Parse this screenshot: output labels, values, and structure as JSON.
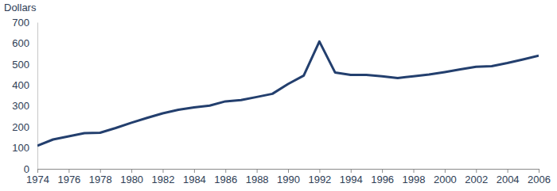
{
  "chart_data": {
    "type": "line",
    "y_label": "Dollars",
    "x": [
      1974,
      1975,
      1976,
      1977,
      1978,
      1979,
      1980,
      1981,
      1982,
      1983,
      1984,
      1985,
      1986,
      1987,
      1988,
      1989,
      1990,
      1991,
      1992,
      1993,
      1994,
      1995,
      1996,
      1997,
      1998,
      1999,
      2000,
      2001,
      2002,
      2003,
      2004,
      2005,
      2006
    ],
    "values": [
      110,
      140,
      155,
      170,
      172,
      195,
      220,
      243,
      265,
      282,
      293,
      302,
      322,
      328,
      343,
      358,
      405,
      445,
      608,
      460,
      448,
      448,
      442,
      433,
      442,
      450,
      462,
      475,
      487,
      490,
      505,
      522,
      540
    ],
    "color": "#233f6e",
    "xlim": [
      1974,
      2006
    ],
    "xticks": [
      1974,
      1976,
      1978,
      1980,
      1982,
      1984,
      1986,
      1988,
      1990,
      1992,
      1994,
      1996,
      1998,
      2000,
      2002,
      2004,
      2006
    ],
    "ylim": [
      0,
      700
    ],
    "yticks": [
      0,
      100,
      200,
      300,
      400,
      500,
      600,
      700
    ],
    "grid": false
  }
}
